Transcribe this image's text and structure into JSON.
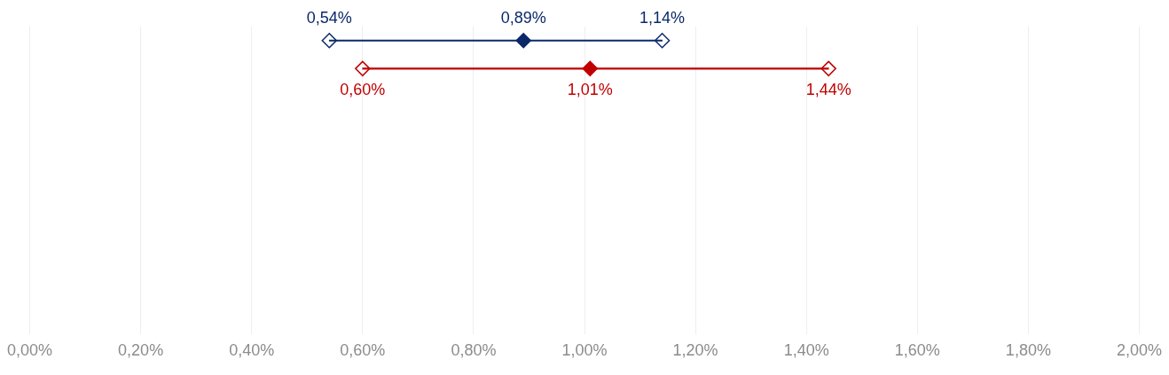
{
  "chart_data": {
    "type": "scatter",
    "orientation": "horizontal",
    "marker": "diamond",
    "grid": "x",
    "tick_labels": "x",
    "categories": [
      null,
      null,
      null,
      null,
      null,
      null,
      null,
      null,
      null,
      null,
      null
    ],
    "xlim": [
      0,
      2
    ],
    "xticks": [
      {
        "value": 0,
        "label": "0,00%"
      },
      {
        "value": 0.2,
        "label": "0,20%"
      },
      {
        "value": 0.4,
        "label": "0,40%"
      },
      {
        "value": 0.6,
        "label": "0,60%"
      },
      {
        "value": 0.8,
        "label": "0,80%"
      },
      {
        "value": 1,
        "label": "1,00%"
      },
      {
        "value": 1.2,
        "label": "1,20%"
      },
      {
        "value": 1.4,
        "label": "1,40%"
      },
      {
        "value": 1.6,
        "label": "1,60%"
      },
      {
        "value": 1.8,
        "label": "1,80%"
      },
      {
        "value": 2,
        "label": "2,00%"
      }
    ],
    "series": [
      {
        "type": "bar",
        "colors": [
          "#0b2869",
          "#c00000",
          null,
          null,
          null,
          null,
          null,
          null,
          null,
          null,
          null
        ],
        "base": [
          0.54,
          0.6,
          null,
          null,
          null,
          null,
          null,
          null,
          null,
          null,
          null
        ],
        "values": [
          0.6,
          0.84,
          null,
          null,
          null,
          null,
          null,
          null,
          null,
          null,
          null
        ]
      },
      {
        "colors": [
          "#0b2869",
          "#c00000",
          null,
          null,
          null,
          null,
          null,
          null,
          null,
          null,
          null
        ],
        "values": [
          0.54,
          0.6,
          null,
          null,
          null,
          null,
          null,
          null,
          null,
          null,
          null
        ],
        "value_labels": [
          "0,54%",
          "0,60%",
          null,
          null,
          null,
          null,
          null,
          null,
          null,
          null,
          null
        ]
      },
      {
        "colors": [
          "#0b2869",
          "#c00000",
          null,
          null,
          null,
          null,
          null,
          null,
          null,
          null,
          null
        ],
        "values": [
          0.89,
          1.01,
          null,
          null,
          null,
          null,
          null,
          null,
          null,
          null,
          null
        ],
        "value_labels": [
          "0,89%",
          "1,01%",
          null,
          null,
          null,
          null,
          null,
          null,
          null,
          null,
          null
        ]
      },
      {
        "colors": [
          "#0b2869",
          "#c00000",
          null,
          null,
          null,
          null,
          null,
          null,
          null,
          null,
          null
        ],
        "values": [
          1.14,
          1.44,
          null,
          null,
          null,
          null,
          null,
          null,
          null,
          null,
          null
        ],
        "value_labels": [
          "1,14%",
          "1,44%",
          null,
          null,
          null,
          null,
          null,
          null,
          null,
          null,
          null
        ]
      }
    ]
  }
}
